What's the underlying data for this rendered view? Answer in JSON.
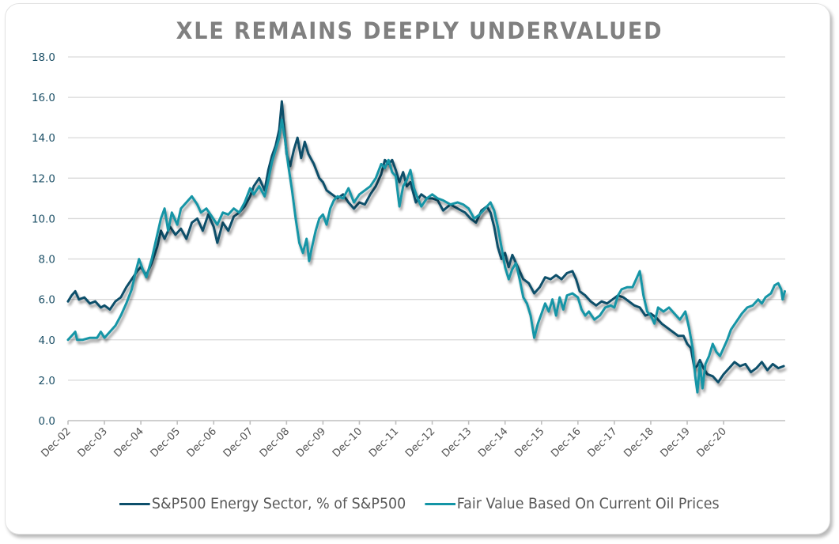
{
  "chart_data": {
    "type": "line",
    "title": "XLE REMAINS DEEPLY UNDERVALUED",
    "xlabel": "",
    "ylabel": "",
    "ylim": [
      0,
      18
    ],
    "yticks": [
      "0.0",
      "2.0",
      "4.0",
      "6.0",
      "8.0",
      "10.0",
      "12.0",
      "14.0",
      "16.0",
      "18.0"
    ],
    "x_tick_labels": [
      "Dec-02",
      "Dec-03",
      "Dec-04",
      "Dec-05",
      "Dec-06",
      "Dec-07",
      "Dec-08",
      "Dec-09",
      "Dec-10",
      "Dec-11",
      "Dec-12",
      "Dec-13",
      "Dec-14",
      "Dec-15",
      "Dec-16",
      "Dec-17",
      "Dec-18",
      "Dec-19",
      "Dec-20"
    ],
    "x_unit": "years since Dec-02",
    "xlim": [
      0,
      19.7
    ],
    "grid": true,
    "legend_position": "bottom",
    "series": [
      {
        "name": "S&P500 Energy Sector, % of S&P500",
        "color": "#0d4f6b",
        "points": [
          [
            0.0,
            5.9
          ],
          [
            0.1,
            6.2
          ],
          [
            0.2,
            6.4
          ],
          [
            0.3,
            6.0
          ],
          [
            0.45,
            6.1
          ],
          [
            0.6,
            5.8
          ],
          [
            0.75,
            5.9
          ],
          [
            0.9,
            5.6
          ],
          [
            1.0,
            5.7
          ],
          [
            1.15,
            5.5
          ],
          [
            1.3,
            5.9
          ],
          [
            1.45,
            6.1
          ],
          [
            1.6,
            6.6
          ],
          [
            1.75,
            7.0
          ],
          [
            1.9,
            7.4
          ],
          [
            2.0,
            7.6
          ],
          [
            2.15,
            7.2
          ],
          [
            2.3,
            7.8
          ],
          [
            2.45,
            8.6
          ],
          [
            2.55,
            9.4
          ],
          [
            2.65,
            9.0
          ],
          [
            2.8,
            9.6
          ],
          [
            2.95,
            9.2
          ],
          [
            3.1,
            9.5
          ],
          [
            3.25,
            9.0
          ],
          [
            3.4,
            9.8
          ],
          [
            3.55,
            10.0
          ],
          [
            3.7,
            9.4
          ],
          [
            3.85,
            10.2
          ],
          [
            4.0,
            9.6
          ],
          [
            4.1,
            8.8
          ],
          [
            4.25,
            9.8
          ],
          [
            4.4,
            9.4
          ],
          [
            4.55,
            10.1
          ],
          [
            4.7,
            10.3
          ],
          [
            4.85,
            10.6
          ],
          [
            5.0,
            11.1
          ],
          [
            5.1,
            11.6
          ],
          [
            5.25,
            12.0
          ],
          [
            5.4,
            11.4
          ],
          [
            5.5,
            12.4
          ],
          [
            5.6,
            13.1
          ],
          [
            5.7,
            13.6
          ],
          [
            5.8,
            14.4
          ],
          [
            5.87,
            15.8
          ],
          [
            5.93,
            14.6
          ],
          [
            6.0,
            13.2
          ],
          [
            6.1,
            12.6
          ],
          [
            6.2,
            13.4
          ],
          [
            6.3,
            14.0
          ],
          [
            6.4,
            13.0
          ],
          [
            6.5,
            13.8
          ],
          [
            6.6,
            13.2
          ],
          [
            6.75,
            12.7
          ],
          [
            6.9,
            12.0
          ],
          [
            7.0,
            11.8
          ],
          [
            7.1,
            11.4
          ],
          [
            7.25,
            11.2
          ],
          [
            7.4,
            11.0
          ],
          [
            7.55,
            11.2
          ],
          [
            7.7,
            10.8
          ],
          [
            7.85,
            10.5
          ],
          [
            8.0,
            10.8
          ],
          [
            8.15,
            10.7
          ],
          [
            8.3,
            11.2
          ],
          [
            8.45,
            11.6
          ],
          [
            8.6,
            12.2
          ],
          [
            8.7,
            12.9
          ],
          [
            8.8,
            12.7
          ],
          [
            8.9,
            12.9
          ],
          [
            9.0,
            12.4
          ],
          [
            9.1,
            11.8
          ],
          [
            9.2,
            12.3
          ],
          [
            9.3,
            11.6
          ],
          [
            9.4,
            11.8
          ],
          [
            9.55,
            10.8
          ],
          [
            9.7,
            11.2
          ],
          [
            9.85,
            11.0
          ],
          [
            10.0,
            11.0
          ],
          [
            10.15,
            10.9
          ],
          [
            10.3,
            10.4
          ],
          [
            10.5,
            10.7
          ],
          [
            10.7,
            10.5
          ],
          [
            10.9,
            10.3
          ],
          [
            11.05,
            10.0
          ],
          [
            11.2,
            9.8
          ],
          [
            11.35,
            10.4
          ],
          [
            11.5,
            10.6
          ],
          [
            11.6,
            10.3
          ],
          [
            11.7,
            9.6
          ],
          [
            11.8,
            8.6
          ],
          [
            11.9,
            8.0
          ],
          [
            12.0,
            8.3
          ],
          [
            12.1,
            7.6
          ],
          [
            12.2,
            8.2
          ],
          [
            12.35,
            7.6
          ],
          [
            12.5,
            7.0
          ],
          [
            12.65,
            6.8
          ],
          [
            12.8,
            6.3
          ],
          [
            12.95,
            6.6
          ],
          [
            13.1,
            7.1
          ],
          [
            13.25,
            7.0
          ],
          [
            13.4,
            7.2
          ],
          [
            13.55,
            7.0
          ],
          [
            13.7,
            7.3
          ],
          [
            13.85,
            7.4
          ],
          [
            13.95,
            7.0
          ],
          [
            14.05,
            6.4
          ],
          [
            14.2,
            6.2
          ],
          [
            14.35,
            5.9
          ],
          [
            14.5,
            5.7
          ],
          [
            14.65,
            5.9
          ],
          [
            14.8,
            5.8
          ],
          [
            14.95,
            6.0
          ],
          [
            15.1,
            6.2
          ],
          [
            15.25,
            6.1
          ],
          [
            15.4,
            5.9
          ],
          [
            15.55,
            5.7
          ],
          [
            15.7,
            5.6
          ],
          [
            15.85,
            5.2
          ],
          [
            16.0,
            5.3
          ],
          [
            16.15,
            5.1
          ],
          [
            16.3,
            4.8
          ],
          [
            16.45,
            4.6
          ],
          [
            16.6,
            4.4
          ],
          [
            16.75,
            4.2
          ],
          [
            16.9,
            4.2
          ],
          [
            17.0,
            3.8
          ],
          [
            17.1,
            3.6
          ],
          [
            17.2,
            2.6
          ],
          [
            17.27,
            2.7
          ],
          [
            17.35,
            3.0
          ],
          [
            17.45,
            2.6
          ],
          [
            17.55,
            2.3
          ],
          [
            17.7,
            2.2
          ],
          [
            17.85,
            1.9
          ],
          [
            18.0,
            2.3
          ],
          [
            18.15,
            2.6
          ],
          [
            18.3,
            2.9
          ],
          [
            18.45,
            2.7
          ],
          [
            18.6,
            2.8
          ],
          [
            18.75,
            2.4
          ],
          [
            18.9,
            2.6
          ],
          [
            19.05,
            2.9
          ],
          [
            19.2,
            2.5
          ],
          [
            19.35,
            2.8
          ],
          [
            19.5,
            2.6
          ],
          [
            19.65,
            2.7
          ]
        ]
      },
      {
        "name": "Fair Value Based On Current Oil Prices",
        "color": "#1395a6",
        "points": [
          [
            0.0,
            4.0
          ],
          [
            0.1,
            4.2
          ],
          [
            0.2,
            4.4
          ],
          [
            0.25,
            4.0
          ],
          [
            0.4,
            4.0
          ],
          [
            0.6,
            4.1
          ],
          [
            0.8,
            4.1
          ],
          [
            0.9,
            4.4
          ],
          [
            1.0,
            4.1
          ],
          [
            1.1,
            4.3
          ],
          [
            1.2,
            4.5
          ],
          [
            1.3,
            4.7
          ],
          [
            1.45,
            5.2
          ],
          [
            1.6,
            5.8
          ],
          [
            1.75,
            6.5
          ],
          [
            1.85,
            7.3
          ],
          [
            1.95,
            8.0
          ],
          [
            2.05,
            7.5
          ],
          [
            2.15,
            7.1
          ],
          [
            2.3,
            8.0
          ],
          [
            2.45,
            9.2
          ],
          [
            2.55,
            10.0
          ],
          [
            2.65,
            10.5
          ],
          [
            2.75,
            9.4
          ],
          [
            2.85,
            10.3
          ],
          [
            3.0,
            9.7
          ],
          [
            3.1,
            10.5
          ],
          [
            3.25,
            10.8
          ],
          [
            3.4,
            11.1
          ],
          [
            3.55,
            10.7
          ],
          [
            3.65,
            10.3
          ],
          [
            3.8,
            10.5
          ],
          [
            3.95,
            10.1
          ],
          [
            4.1,
            9.7
          ],
          [
            4.25,
            10.3
          ],
          [
            4.4,
            10.2
          ],
          [
            4.55,
            10.5
          ],
          [
            4.7,
            10.3
          ],
          [
            4.85,
            10.8
          ],
          [
            5.0,
            11.5
          ],
          [
            5.1,
            11.2
          ],
          [
            5.25,
            11.6
          ],
          [
            5.4,
            11.1
          ],
          [
            5.5,
            11.9
          ],
          [
            5.6,
            12.8
          ],
          [
            5.7,
            13.4
          ],
          [
            5.8,
            14.0
          ],
          [
            5.87,
            14.9
          ],
          [
            5.95,
            14.0
          ],
          [
            6.05,
            12.6
          ],
          [
            6.15,
            11.4
          ],
          [
            6.25,
            10.0
          ],
          [
            6.35,
            8.8
          ],
          [
            6.45,
            8.3
          ],
          [
            6.55,
            9.0
          ],
          [
            6.62,
            7.9
          ],
          [
            6.7,
            8.6
          ],
          [
            6.8,
            9.4
          ],
          [
            6.9,
            10.0
          ],
          [
            7.0,
            10.2
          ],
          [
            7.1,
            9.7
          ],
          [
            7.2,
            10.5
          ],
          [
            7.3,
            10.9
          ],
          [
            7.4,
            11.1
          ],
          [
            7.55,
            11.0
          ],
          [
            7.7,
            11.5
          ],
          [
            7.85,
            10.8
          ],
          [
            8.0,
            11.2
          ],
          [
            8.15,
            11.4
          ],
          [
            8.3,
            11.6
          ],
          [
            8.45,
            12.0
          ],
          [
            8.6,
            12.7
          ],
          [
            8.7,
            12.5
          ],
          [
            8.8,
            12.9
          ],
          [
            8.9,
            12.3
          ],
          [
            9.0,
            12.1
          ],
          [
            9.1,
            10.6
          ],
          [
            9.2,
            11.6
          ],
          [
            9.3,
            11.9
          ],
          [
            9.4,
            12.4
          ],
          [
            9.5,
            11.5
          ],
          [
            9.6,
            11.0
          ],
          [
            9.7,
            10.6
          ],
          [
            9.85,
            11.0
          ],
          [
            10.0,
            11.2
          ],
          [
            10.15,
            11.0
          ],
          [
            10.3,
            10.9
          ],
          [
            10.5,
            10.7
          ],
          [
            10.7,
            10.8
          ],
          [
            10.85,
            10.7
          ],
          [
            11.0,
            10.5
          ],
          [
            11.15,
            10.0
          ],
          [
            11.3,
            10.2
          ],
          [
            11.45,
            10.5
          ],
          [
            11.6,
            10.8
          ],
          [
            11.7,
            10.4
          ],
          [
            11.8,
            9.6
          ],
          [
            11.9,
            8.6
          ],
          [
            12.0,
            7.6
          ],
          [
            12.1,
            7.0
          ],
          [
            12.2,
            7.5
          ],
          [
            12.3,
            7.8
          ],
          [
            12.4,
            7.0
          ],
          [
            12.5,
            6.1
          ],
          [
            12.6,
            5.8
          ],
          [
            12.7,
            5.2
          ],
          [
            12.8,
            4.1
          ],
          [
            12.9,
            4.8
          ],
          [
            13.0,
            5.3
          ],
          [
            13.1,
            5.8
          ],
          [
            13.2,
            5.4
          ],
          [
            13.3,
            6.0
          ],
          [
            13.4,
            5.2
          ],
          [
            13.5,
            6.1
          ],
          [
            13.6,
            5.5
          ],
          [
            13.7,
            6.2
          ],
          [
            13.85,
            6.3
          ],
          [
            14.0,
            6.1
          ],
          [
            14.1,
            5.5
          ],
          [
            14.2,
            5.2
          ],
          [
            14.3,
            5.4
          ],
          [
            14.45,
            5.0
          ],
          [
            14.6,
            5.2
          ],
          [
            14.75,
            5.6
          ],
          [
            14.9,
            5.7
          ],
          [
            15.0,
            5.6
          ],
          [
            15.1,
            6.2
          ],
          [
            15.2,
            6.5
          ],
          [
            15.35,
            6.6
          ],
          [
            15.5,
            6.6
          ],
          [
            15.6,
            7.0
          ],
          [
            15.7,
            7.4
          ],
          [
            15.8,
            6.2
          ],
          [
            15.9,
            5.4
          ],
          [
            16.0,
            5.2
          ],
          [
            16.1,
            4.8
          ],
          [
            16.2,
            5.6
          ],
          [
            16.35,
            5.4
          ],
          [
            16.5,
            5.6
          ],
          [
            16.65,
            5.3
          ],
          [
            16.8,
            5.0
          ],
          [
            16.95,
            5.4
          ],
          [
            17.05,
            4.6
          ],
          [
            17.15,
            3.6
          ],
          [
            17.22,
            2.2
          ],
          [
            17.28,
            1.4
          ],
          [
            17.35,
            2.8
          ],
          [
            17.42,
            1.6
          ],
          [
            17.5,
            2.8
          ],
          [
            17.6,
            3.2
          ],
          [
            17.7,
            3.8
          ],
          [
            17.8,
            3.4
          ],
          [
            17.9,
            3.2
          ],
          [
            18.0,
            3.6
          ],
          [
            18.1,
            4.0
          ],
          [
            18.2,
            4.5
          ],
          [
            18.35,
            4.9
          ],
          [
            18.5,
            5.3
          ],
          [
            18.65,
            5.6
          ],
          [
            18.8,
            5.7
          ],
          [
            18.95,
            6.0
          ],
          [
            19.05,
            5.8
          ],
          [
            19.15,
            6.1
          ],
          [
            19.3,
            6.3
          ],
          [
            19.4,
            6.7
          ],
          [
            19.5,
            6.8
          ],
          [
            19.58,
            6.5
          ],
          [
            19.62,
            6.0
          ],
          [
            19.68,
            6.4
          ]
        ]
      }
    ]
  }
}
